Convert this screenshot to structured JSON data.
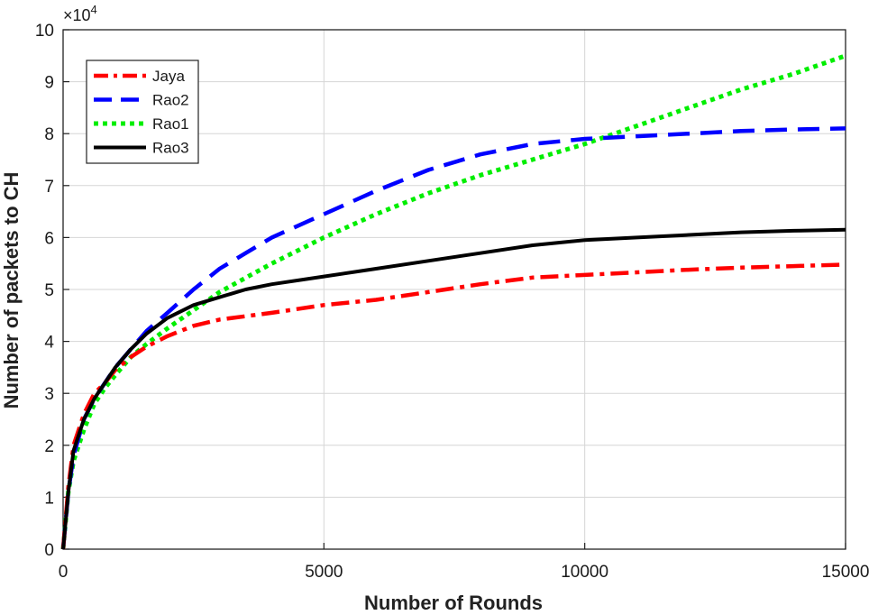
{
  "chart_data": {
    "type": "line",
    "title": "",
    "xlabel": "Number of Rounds",
    "ylabel": "Number of packets to CH",
    "y_multiplier_label": "×10",
    "y_multiplier_exponent": "4",
    "xlim": [
      0,
      15000
    ],
    "ylim": [
      0,
      10
    ],
    "x_ticks": [
      0,
      5000,
      10000,
      15000
    ],
    "y_ticks": [
      0,
      1,
      2,
      3,
      4,
      5,
      6,
      7,
      8,
      9,
      10
    ],
    "grid": true,
    "legend_position": "top-left",
    "series": [
      {
        "name": "Jaya",
        "color": "#ff0000",
        "style": "dashdot",
        "x": [
          0,
          100,
          200,
          400,
          600,
          800,
          1000,
          1300,
          1600,
          2000,
          2500,
          3000,
          4000,
          5000,
          6000,
          7000,
          8000,
          9000,
          10000,
          11000,
          12000,
          13000,
          14000,
          15000
        ],
        "y": [
          0,
          1.2,
          2.0,
          2.6,
          3.0,
          3.2,
          3.45,
          3.7,
          3.9,
          4.1,
          4.3,
          4.42,
          4.55,
          4.7,
          4.8,
          4.95,
          5.1,
          5.23,
          5.28,
          5.33,
          5.38,
          5.42,
          5.45,
          5.48
        ]
      },
      {
        "name": "Rao2",
        "color": "#0000ff",
        "style": "dashed",
        "x": [
          0,
          100,
          200,
          400,
          600,
          800,
          1000,
          1300,
          1600,
          2000,
          2500,
          3000,
          3500,
          4000,
          5000,
          6000,
          7000,
          8000,
          9000,
          10000,
          11000,
          12000,
          13000,
          14000,
          15000
        ],
        "y": [
          0,
          1.1,
          1.8,
          2.5,
          2.9,
          3.2,
          3.5,
          3.85,
          4.2,
          4.55,
          5.0,
          5.4,
          5.7,
          6.0,
          6.45,
          6.9,
          7.3,
          7.6,
          7.8,
          7.9,
          7.95,
          8.0,
          8.05,
          8.08,
          8.1
        ]
      },
      {
        "name": "Rao1",
        "color": "#00ee00",
        "style": "dotted",
        "x": [
          0,
          100,
          200,
          400,
          600,
          800,
          1000,
          1300,
          1600,
          2000,
          2500,
          3000,
          4000,
          5000,
          6000,
          7000,
          8000,
          9000,
          10000,
          11000,
          12000,
          13000,
          14000,
          15000
        ],
        "y": [
          0,
          1.1,
          1.7,
          2.3,
          2.8,
          3.1,
          3.35,
          3.7,
          3.95,
          4.25,
          4.6,
          4.95,
          5.5,
          6.0,
          6.45,
          6.85,
          7.2,
          7.5,
          7.8,
          8.15,
          8.5,
          8.85,
          9.15,
          9.5
        ]
      },
      {
        "name": "Rao3",
        "color": "#000000",
        "style": "solid",
        "x": [
          0,
          100,
          200,
          400,
          600,
          800,
          1000,
          1300,
          1600,
          2000,
          2500,
          3000,
          3500,
          4000,
          5000,
          6000,
          7000,
          8000,
          9000,
          10000,
          11000,
          12000,
          13000,
          14000,
          15000
        ],
        "y": [
          0,
          1.1,
          1.9,
          2.5,
          2.9,
          3.2,
          3.5,
          3.85,
          4.15,
          4.45,
          4.7,
          4.85,
          5.0,
          5.1,
          5.25,
          5.4,
          5.55,
          5.7,
          5.85,
          5.95,
          6.0,
          6.05,
          6.1,
          6.13,
          6.15
        ]
      }
    ]
  }
}
